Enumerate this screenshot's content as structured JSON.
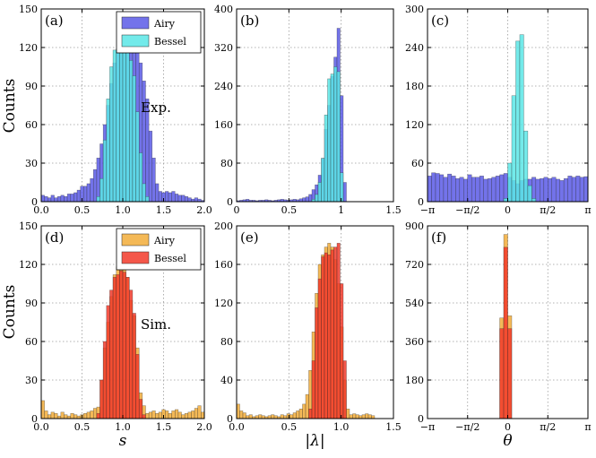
{
  "figure": {
    "ylabel_top": "Counts",
    "ylabel_bottom": "Counts"
  },
  "chart_data": [
    {
      "type": "bar",
      "panel": "(a)",
      "annotation": "Exp.",
      "legend": [
        "Airy",
        "Bessel"
      ],
      "xlim": [
        0,
        2
      ],
      "ylim": [
        0,
        150
      ],
      "xticks": [
        "0.0",
        "0.5",
        "1.0",
        "1.5",
        "2.0"
      ],
      "yticks": [
        "0",
        "30",
        "60",
        "90",
        "120",
        "150"
      ],
      "xlabel": "",
      "ylabel": "Counts",
      "grid": true,
      "legend_position": "top-right",
      "bin_start": 0,
      "bin_width": 0.04,
      "series": [
        {
          "name": "Airy",
          "color": "#5a5ae6",
          "values": [
            5,
            4,
            3,
            5,
            3,
            4,
            5,
            4,
            6,
            6,
            7,
            9,
            12,
            12,
            14,
            18,
            25,
            34,
            45,
            60,
            75,
            92,
            108,
            118,
            128,
            133,
            136,
            138,
            129,
            120,
            108,
            94,
            80,
            55,
            34,
            14,
            8,
            7,
            8,
            7,
            8,
            6,
            5,
            5,
            4,
            3,
            2,
            3,
            2,
            1
          ]
        },
        {
          "name": "Bessel",
          "color": "#5ae6e6",
          "values": [
            0,
            0,
            0,
            0,
            0,
            0,
            0,
            0,
            0,
            0,
            0,
            0,
            0,
            0,
            0,
            0,
            0,
            4,
            18,
            48,
            80,
            105,
            118,
            119,
            122,
            123,
            122,
            110,
            98,
            70,
            38,
            14,
            4,
            0,
            0,
            0,
            0,
            0,
            0,
            0,
            0,
            0,
            0,
            0,
            0,
            0,
            0,
            0,
            0,
            0
          ]
        }
      ]
    },
    {
      "type": "bar",
      "panel": "(b)",
      "xlim": [
        0,
        1.5
      ],
      "ylim": [
        0,
        400
      ],
      "xticks": [
        "0",
        "0.5",
        "1",
        "1.5"
      ],
      "yticks": [
        "0",
        "80",
        "160",
        "240",
        "320",
        "400"
      ],
      "grid": true,
      "bin_start": 0,
      "bin_width": 0.03,
      "series": [
        {
          "name": "Airy",
          "color": "#5a5ae6",
          "values": [
            2,
            3,
            4,
            5,
            3,
            3,
            2,
            3,
            3,
            4,
            3,
            2,
            3,
            4,
            5,
            4,
            3,
            4,
            5,
            4,
            6,
            8,
            10,
            15,
            25,
            35,
            55,
            90,
            150,
            200,
            260,
            300,
            360,
            220,
            40,
            0,
            0,
            0,
            0,
            0,
            0,
            0,
            0,
            0,
            0,
            0,
            0,
            0,
            0,
            0
          ]
        },
        {
          "name": "Bessel",
          "color": "#5ae6e6",
          "values": [
            0,
            0,
            0,
            0,
            0,
            0,
            0,
            0,
            0,
            0,
            0,
            0,
            0,
            0,
            0,
            0,
            0,
            0,
            0,
            0,
            0,
            0,
            0,
            0,
            5,
            15,
            40,
            90,
            180,
            255,
            265,
            280,
            270,
            60,
            0,
            0,
            0,
            0,
            0,
            0,
            0,
            0,
            0,
            0,
            0,
            0,
            0,
            0,
            0,
            0
          ]
        }
      ]
    },
    {
      "type": "bar",
      "panel": "(c)",
      "xlim": [
        -3.1416,
        3.1416
      ],
      "ylim": [
        0,
        300
      ],
      "xticks": [
        "−π",
        "−π/2",
        "0",
        "π/2",
        "π"
      ],
      "yticks": [
        "0",
        "60",
        "120",
        "180",
        "240",
        "300"
      ],
      "grid": true,
      "bin_start": -3.1416,
      "bin_width": 0.1571,
      "series": [
        {
          "name": "Airy",
          "color": "#5a5ae6",
          "values": [
            40,
            45,
            44,
            42,
            38,
            43,
            40,
            36,
            38,
            35,
            42,
            38,
            38,
            40,
            35,
            36,
            38,
            40,
            42,
            44,
            38,
            33,
            28,
            33,
            35,
            35,
            38,
            35,
            36,
            38,
            36,
            38,
            35,
            33,
            36,
            40,
            38,
            40,
            38,
            39
          ]
        },
        {
          "name": "Bessel",
          "color": "#5ae6e6",
          "values": [
            0,
            0,
            0,
            0,
            0,
            0,
            0,
            0,
            0,
            0,
            0,
            0,
            0,
            0,
            0,
            0,
            0,
            0,
            0,
            5,
            60,
            165,
            250,
            260,
            110,
            25,
            5,
            0,
            0,
            0,
            0,
            0,
            0,
            0,
            0,
            0,
            0,
            0,
            0,
            0
          ]
        }
      ]
    },
    {
      "type": "bar",
      "panel": "(d)",
      "annotation": "Sim.",
      "legend": [
        "Airy",
        "Bessel"
      ],
      "xlim": [
        0,
        2
      ],
      "ylim": [
        0,
        150
      ],
      "xticks": [
        "0.0",
        "0.5",
        "1.0",
        "1.5",
        "2.0"
      ],
      "yticks": [
        "0",
        "30",
        "60",
        "90",
        "120",
        "150"
      ],
      "xlabel": "s",
      "ylabel": "Counts",
      "grid": true,
      "legend_position": "top-right",
      "bin_start": 0,
      "bin_width": 0.04,
      "series": [
        {
          "name": "Airy",
          "color": "#f2ad3a",
          "values": [
            14,
            6,
            3,
            5,
            4,
            2,
            5,
            3,
            2,
            4,
            3,
            2,
            3,
            4,
            5,
            6,
            8,
            9,
            30,
            55,
            75,
            95,
            112,
            118,
            126,
            122,
            110,
            92,
            80,
            55,
            20,
            10,
            4,
            5,
            6,
            4,
            5,
            7,
            6,
            4,
            6,
            7,
            5,
            3,
            4,
            5,
            6,
            8,
            10,
            5
          ]
        },
        {
          "name": "Bessel",
          "color": "#f23a2a",
          "values": [
            0,
            0,
            0,
            0,
            0,
            0,
            0,
            0,
            0,
            0,
            0,
            0,
            0,
            0,
            0,
            0,
            0,
            4,
            30,
            60,
            88,
            100,
            110,
            112,
            115,
            114,
            110,
            100,
            82,
            50,
            15,
            3,
            0,
            0,
            0,
            0,
            0,
            0,
            0,
            0,
            0,
            0,
            0,
            0,
            0,
            0,
            0,
            0,
            0,
            0
          ]
        }
      ]
    },
    {
      "type": "bar",
      "panel": "(e)",
      "xlim": [
        0,
        1.5
      ],
      "ylim": [
        0,
        200
      ],
      "xticks": [
        "0.0",
        "0.5",
        "1.0",
        "1.5"
      ],
      "yticks": [
        "0",
        "40",
        "80",
        "120",
        "160",
        "200"
      ],
      "xlabel": "|λ|",
      "grid": true,
      "bin_start": 0,
      "bin_width": 0.03,
      "series": [
        {
          "name": "Airy",
          "color": "#f2ad3a",
          "values": [
            15,
            8,
            6,
            3,
            4,
            2,
            3,
            4,
            3,
            2,
            3,
            4,
            3,
            2,
            4,
            3,
            5,
            4,
            6,
            8,
            10,
            15,
            25,
            50,
            90,
            130,
            160,
            170,
            178,
            182,
            178,
            165,
            140,
            95,
            40,
            10,
            4,
            5,
            4,
            3,
            4,
            5,
            4,
            3,
            0,
            0,
            0,
            0,
            0,
            0
          ]
        },
        {
          "name": "Bessel",
          "color": "#f23a2a",
          "values": [
            0,
            0,
            0,
            0,
            0,
            0,
            0,
            0,
            0,
            0,
            0,
            0,
            0,
            0,
            0,
            0,
            0,
            0,
            0,
            0,
            0,
            0,
            0,
            10,
            60,
            115,
            145,
            168,
            172,
            170,
            175,
            178,
            182,
            140,
            60,
            0,
            0,
            0,
            0,
            0,
            0,
            0,
            0,
            0,
            0,
            0,
            0,
            0,
            0,
            0
          ]
        }
      ]
    },
    {
      "type": "bar",
      "panel": "(f)",
      "xlim": [
        -3.1416,
        3.1416
      ],
      "ylim": [
        0,
        900
      ],
      "xticks": [
        "−π",
        "−π/2",
        "0",
        "π/2",
        "π"
      ],
      "yticks": [
        "0",
        "180",
        "360",
        "540",
        "720",
        "900"
      ],
      "xlabel": "θ",
      "grid": true,
      "bin_start": -3.1416,
      "bin_width": 0.1571,
      "series": [
        {
          "name": "Airy",
          "color": "#f2ad3a",
          "values": [
            0,
            0,
            0,
            0,
            0,
            0,
            0,
            0,
            0,
            0,
            0,
            0,
            0,
            0,
            0,
            0,
            0,
            0,
            470,
            860,
            480,
            0,
            0,
            0,
            0,
            0,
            0,
            0,
            0,
            0,
            0,
            0,
            0,
            0,
            0,
            0,
            0,
            0,
            0,
            0
          ]
        },
        {
          "name": "Bessel",
          "color": "#f23a2a",
          "values": [
            0,
            0,
            0,
            0,
            0,
            0,
            0,
            0,
            0,
            0,
            0,
            0,
            0,
            0,
            0,
            0,
            0,
            0,
            420,
            800,
            420,
            0,
            0,
            0,
            0,
            0,
            0,
            0,
            0,
            0,
            0,
            0,
            0,
            0,
            0,
            0,
            0,
            0,
            0,
            0
          ]
        }
      ]
    }
  ]
}
